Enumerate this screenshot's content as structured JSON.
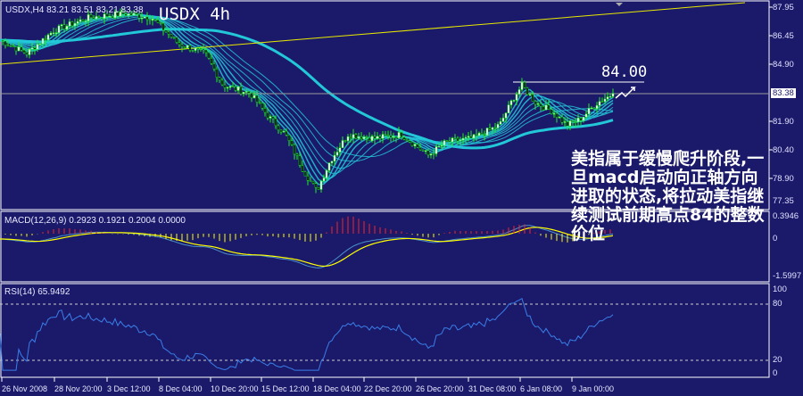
{
  "header": {
    "symbol_info": "USDX,H4  83.21 83.51 83.21 83.38",
    "title": "USDX 4h"
  },
  "annotation": {
    "level_label": "84.00"
  },
  "note_text": "美指属于缓慢爬升阶段,一旦macd启动向正轴方向进取的状态,将拉动美指继续测试前期高点84的整数价位",
  "price_axis": {
    "labels": [
      "87.95",
      "86.45",
      "84.90",
      "81.90",
      "80.40",
      "78.90",
      "77.35"
    ],
    "current_price": "83.38"
  },
  "macd": {
    "label": "MACD(12,26,9) 0.2923 0.1921 0.2004 0.0000",
    "axis_labels": [
      "0.3946",
      "0",
      "-1.5997"
    ]
  },
  "rsi": {
    "label": "RSI(14) 65.9492",
    "axis_labels": [
      "100",
      "80",
      "20",
      "0"
    ]
  },
  "time_axis": [
    "26 Nov 2008",
    "28 Nov 20:00",
    "3 Dec 12:00",
    "8 Dec 04:00",
    "10 Dec 20:00",
    "15 Dec 12:00",
    "18 Dec 04:00",
    "22 Dec 20:00",
    "26 Dec 20:00",
    "31 Dec 08:00",
    "6 Jan 08:00",
    "9 Jan 00:00"
  ],
  "colors": {
    "background": "#1b1a6a",
    "candles": "#22ee22",
    "moving_averages": "#22c8d8",
    "trendline": "#e8e800",
    "macd_signal": "#ffff00",
    "macd_main": "#4a90c8",
    "hist_up": "#ff2020",
    "hist_down": "#ffff00",
    "rsi_line": "#3a7ee8"
  },
  "chart_data": {
    "type": "line",
    "series": [
      {
        "values": [
          86.2,
          85.5,
          86.7,
          87.4,
          87.6,
          87.4,
          86.0,
          85.5,
          83.8,
          83.4,
          82.2,
          81.2,
          79.3,
          78.2,
          79.8,
          81.2,
          81.0,
          81.2,
          80.1,
          80.8,
          81.0,
          81.7,
          83.1,
          83.8,
          82.9,
          82.4,
          81.7,
          82.0,
          82.9,
          83.38
        ]
      }
    ],
    "ylim": [
      77.35,
      87.95
    ]
  }
}
